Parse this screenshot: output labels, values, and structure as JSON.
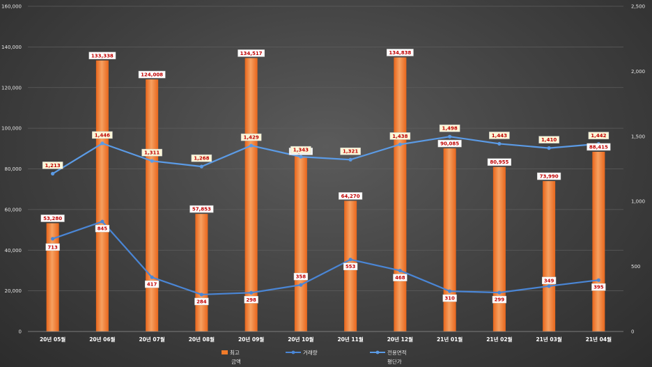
{
  "chart_data": {
    "type": "bar",
    "categories": [
      "20년 05월",
      "20년 06월",
      "20년 07월",
      "20년 08월",
      "20년 09월",
      "20년 10월",
      "20년 11월",
      "20년 12월",
      "21년 01월",
      "21년 02월",
      "21년 03월",
      "21년 04월"
    ],
    "series": [
      {
        "name": "최고 금액",
        "type": "bar",
        "axis": "left",
        "color": "#f07b2a",
        "values": [
          53280,
          133338,
          124008,
          57853,
          134517,
          86204,
          64270,
          134838,
          90085,
          80955,
          73990,
          88415
        ]
      },
      {
        "name": "거래량",
        "type": "line",
        "axis": "right",
        "color": "#4a86d6",
        "values": [
          713,
          845,
          417,
          284,
          298,
          358,
          553,
          468,
          310,
          299,
          349,
          395
        ]
      },
      {
        "name": "전용면적 평단가",
        "type": "line",
        "axis": "right",
        "color": "#5b9be6",
        "values": [
          1213,
          1446,
          1311,
          1268,
          1429,
          1343,
          1321,
          1438,
          1498,
          1443,
          1410,
          1442
        ]
      }
    ],
    "y_left": {
      "range": [
        0,
        160000
      ],
      "ticks": [
        "0",
        "20,000",
        "40,000",
        "60,000",
        "80,000",
        "100,000",
        "120,000",
        "140,000",
        "160,000"
      ]
    },
    "y_right": {
      "range": [
        0,
        2500
      ],
      "ticks": [
        "0",
        "500",
        "1,000",
        "1,500",
        "2,000",
        "2,500"
      ]
    },
    "bar_labels": [
      "53,280",
      "133,338",
      "124,008",
      "57,853",
      "134,517",
      "86,204",
      "64,270",
      "134,838",
      "90,085",
      "80,955",
      "73,990",
      "88,415"
    ],
    "volume_labels": [
      "713",
      "845",
      "417",
      "284",
      "298",
      "358",
      "553",
      "468",
      "310",
      "299",
      "349",
      "395"
    ],
    "price_labels": [
      "1,213",
      "1,446",
      "1,311",
      "1,268",
      "1,429",
      "1,343",
      "1,321",
      "1,438",
      "1,498",
      "1,443",
      "1,410",
      "1,442"
    ],
    "legend": {
      "placement": "bottom",
      "items": [
        {
          "line1": "최고",
          "line2": "금액"
        },
        {
          "line1": "거래량",
          "line2": ""
        },
        {
          "line1": "전용면적",
          "line2": "평단가"
        }
      ]
    },
    "grid": true
  }
}
